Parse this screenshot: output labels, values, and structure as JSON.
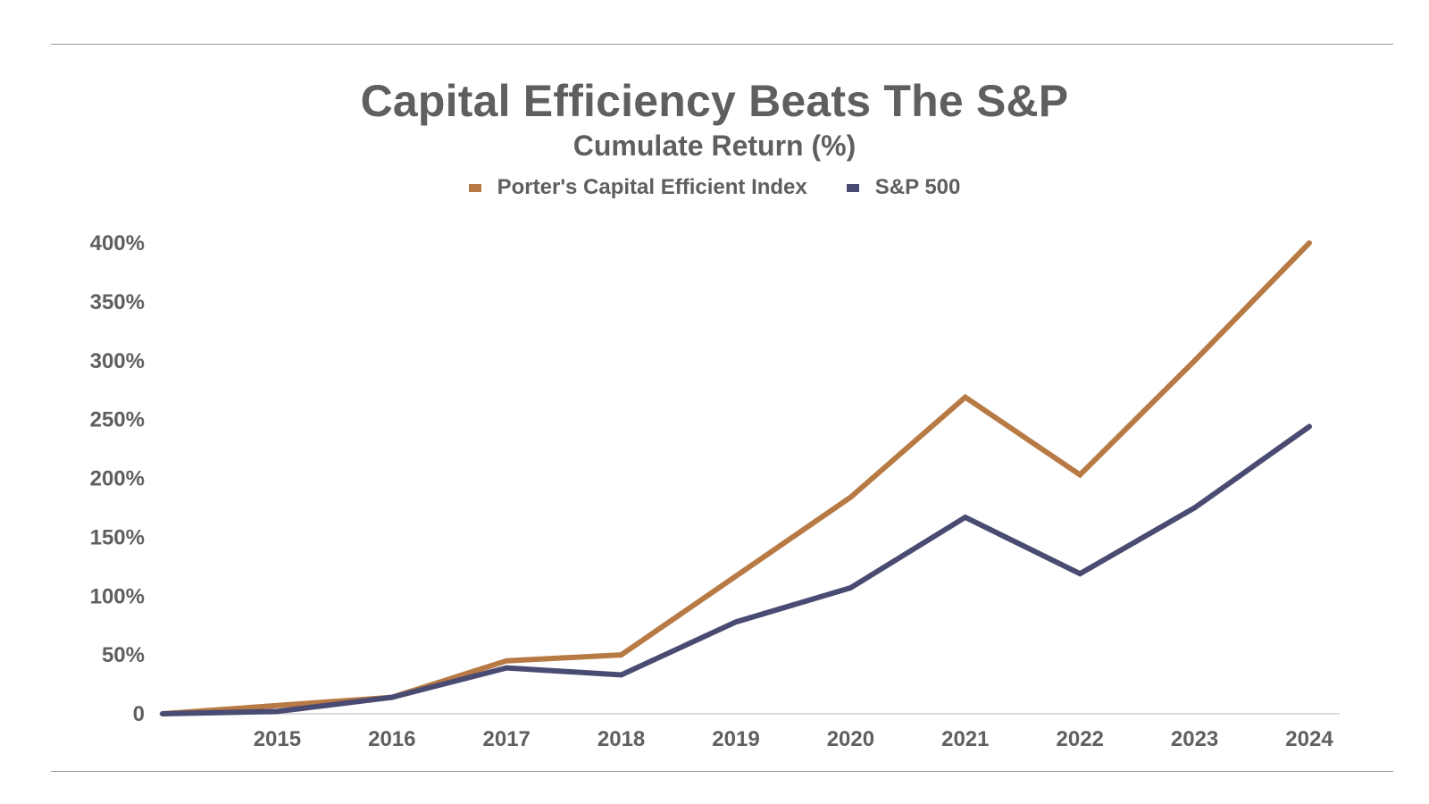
{
  "chart_data": {
    "type": "line",
    "title": "Capital Efficiency Beats The S&P",
    "subtitle": "Cumulate Return (%)",
    "xlabel": "",
    "ylabel": "",
    "categories": [
      "",
      "2015",
      "2016",
      "2017",
      "2018",
      "2019",
      "2020",
      "2021",
      "2022",
      "2023",
      "2024"
    ],
    "series": [
      {
        "name": "Porter's Capital Efficient Index",
        "color": "#b87a44",
        "values": [
          0,
          7,
          14,
          45,
          50,
          117,
          184,
          269,
          203,
          300,
          400
        ]
      },
      {
        "name": "S&P 500",
        "color": "#4a4b72",
        "values": [
          0,
          2,
          14,
          39,
          33,
          78,
          107,
          167,
          119,
          175,
          244
        ]
      }
    ],
    "y_ticks": [
      {
        "value": 0,
        "label": "0"
      },
      {
        "value": 50,
        "label": "50%"
      },
      {
        "value": 100,
        "label": "100%"
      },
      {
        "value": 150,
        "label": "150%"
      },
      {
        "value": 200,
        "label": "200%"
      },
      {
        "value": 250,
        "label": "250%"
      },
      {
        "value": 300,
        "label": "300%"
      },
      {
        "value": 350,
        "label": "350%"
      },
      {
        "value": 400,
        "label": "400%"
      }
    ],
    "ylim": [
      0,
      400
    ],
    "grid": false,
    "legend_position": "top-center",
    "colors": {
      "text": "#5f5f5f",
      "axis": "#d9d9d9",
      "rule": "#9a9a9a"
    }
  }
}
